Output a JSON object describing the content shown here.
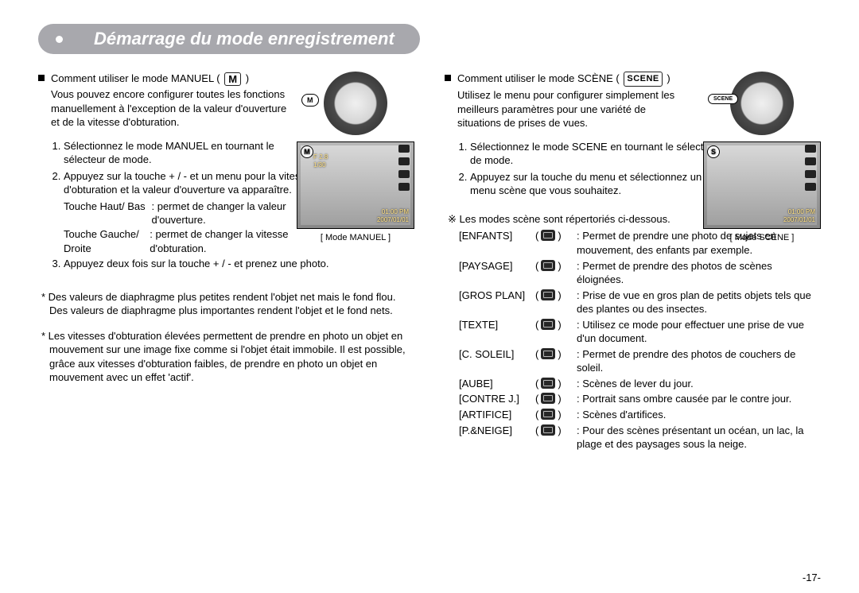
{
  "header": {
    "title": "Démarrage du mode enregistrement"
  },
  "left": {
    "bullet": "Comment utiliser le mode MANUEL (",
    "bullet_after": ")",
    "mode_chip": "M",
    "intro": "Vous pouvez encore configurer toutes les fonctions manuellement à l'exception de la valeur d'ouverture et de la vitesse d'obturation.",
    "dial_label": "M",
    "screen": {
      "badge": "M",
      "f": "F 2.8",
      "sh": "1/30",
      "time": "01:00 PM",
      "date": "2007/01/01"
    },
    "caption": "[ Mode MANUEL ]",
    "steps": [
      "Sélectionnez le mode MANUEL en tournant le sélecteur de mode.",
      "Appuyez sur la touche + / - et un menu pour la vitesse d'obturation et la valeur d'ouverture va apparaître."
    ],
    "defs": [
      {
        "k": "Touche Haut/ Bas",
        "v": ": permet de changer la valeur d'ouverture."
      },
      {
        "k": "Touche Gauche/ Droite",
        "v": ": permet de changer la vitesse d'obturation."
      }
    ],
    "step3": "Appuyez deux fois sur la touche + / - et prenez une photo.",
    "notes": [
      "* Des valeurs de diaphragme plus petites rendent l'objet net mais le fond flou. Des valeurs de diaphragme plus importantes rendent l'objet et le fond nets.",
      "* Les vitesses d'obturation élevées permettent de prendre en photo un objet en mouvement sur une image fixe comme si l'objet était immobile. Il est possible, grâce aux vitesses d'obturation faibles, de prendre en photo un objet en mouvement avec un effet 'actif'."
    ]
  },
  "right": {
    "bullet": "Comment utiliser le mode SCÈNE (",
    "bullet_after": ")",
    "mode_chip": "SCENE",
    "intro": "Utilisez le menu pour configurer simplement les meilleurs paramètres pour une variété de situations de prises de vues.",
    "dial_label": "SCENE",
    "screen": {
      "badge": "S",
      "time": "01:00 PM",
      "date": "2007/01/01"
    },
    "caption": "[ Mode SCÈNE ]",
    "steps": [
      "Sélectionnez le mode SCENE en tournant le sélecteur de mode.",
      "Appuyez sur la touche du menu et sélectionnez un menu scène que vous souhaitez."
    ],
    "scene_note": "※ Les modes scène sont répertoriés ci-dessous.",
    "scenes": [
      {
        "name": "[ENFANTS]",
        "desc": ": Permet de prendre une photo de sujets en mouvement, des enfants par exemple."
      },
      {
        "name": "[PAYSAGE]",
        "desc": ": Permet de prendre des photos de scènes éloignées."
      },
      {
        "name": "[GROS PLAN]",
        "desc": ": Prise de vue en gros plan de petits objets tels que des plantes ou des insectes."
      },
      {
        "name": "[TEXTE]",
        "desc": ": Utilisez ce mode pour effectuer une prise de vue d'un document."
      },
      {
        "name": "[C. SOLEIL]",
        "desc": ": Permet de prendre des photos de couchers de soleil."
      },
      {
        "name": "[AUBE]",
        "desc": ": Scènes de lever du jour."
      },
      {
        "name": "[CONTRE J.]",
        "desc": ": Portrait sans ombre causée par le contre jour."
      },
      {
        "name": "[ARTIFICE]",
        "desc": ": Scènes d'artifices."
      },
      {
        "name": "[P.&NEIGE]",
        "desc": ": Pour des scènes présentant un océan, un lac, la plage et des paysages sous la neige."
      }
    ]
  },
  "page_number": "-17-"
}
